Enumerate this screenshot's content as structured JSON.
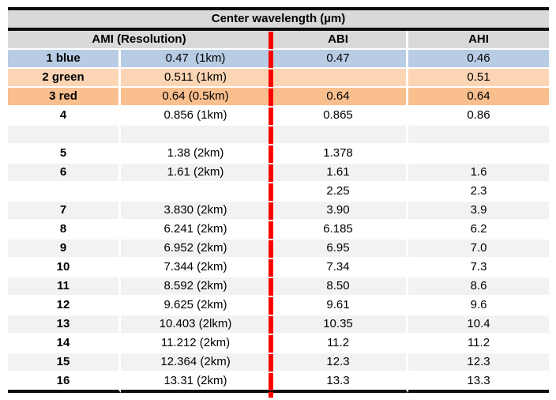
{
  "chart_data": {
    "type": "table",
    "title": "Center wavelength (µm)",
    "header": {
      "ami": "AMI (Resolution)",
      "abi": "ABI",
      "ahi": "AHI"
    },
    "column_keys": [
      "band",
      "ami",
      "abi",
      "ahi"
    ],
    "rows": [
      {
        "band": "1 blue",
        "ami": "0.47  (1km)",
        "abi": "0.47",
        "ahi": "0.46",
        "bg": "blue"
      },
      {
        "band": "2 green",
        "ami": "0.511 (1km)",
        "abi": "",
        "ahi": "0.51",
        "bg": "peach"
      },
      {
        "band": "3 red",
        "ami": "0.64 (0.5km)",
        "abi": "0.64",
        "ahi": "0.64",
        "bg": "orange"
      },
      {
        "band": "4",
        "ami": "0.856 (1km)",
        "abi": "0.865",
        "ahi": "0.86",
        "bg": "white"
      },
      {
        "band": "",
        "ami": "",
        "abi": "",
        "ahi": "",
        "bg": "gray"
      },
      {
        "band": "5",
        "ami": "1.38 (2km)",
        "abi": "1.378",
        "ahi": "",
        "bg": "white"
      },
      {
        "band": "6",
        "ami": "1.61 (2km)",
        "abi": "1.61",
        "ahi": "1.6",
        "bg": "gray"
      },
      {
        "band": "",
        "ami": "",
        "abi": "2.25",
        "ahi": "2.3",
        "bg": "white"
      },
      {
        "band": "7",
        "ami": "3.830 (2km)",
        "abi": "3.90",
        "ahi": "3.9",
        "bg": "gray"
      },
      {
        "band": "8",
        "ami": "6.241 (2km)",
        "abi": "6.185",
        "ahi": "6.2",
        "bg": "white"
      },
      {
        "band": "9",
        "ami": "6.952 (2km)",
        "abi": "6.95",
        "ahi": "7.0",
        "bg": "gray"
      },
      {
        "band": "10",
        "ami": "7.344 (2km)",
        "abi": "7.34",
        "ahi": "7.3",
        "bg": "white"
      },
      {
        "band": "11",
        "ami": "8.592 (2km)",
        "abi": "8.50",
        "ahi": "8.6",
        "bg": "gray"
      },
      {
        "band": "12",
        "ami": "9.625 (2km)",
        "abi": "9.61",
        "ahi": "9.6",
        "bg": "white"
      },
      {
        "band": "13",
        "ami": "10.403 (2lkm)",
        "abi": "10.35",
        "ahi": "10.4",
        "bg": "gray"
      },
      {
        "band": "14",
        "ami": "11.212 (2km)",
        "abi": "11.2",
        "ahi": "11.2",
        "bg": "white"
      },
      {
        "band": "15",
        "ami": "12.364 (2km)",
        "abi": "12.3",
        "ahi": "12.3",
        "bg": "gray"
      },
      {
        "band": "16",
        "ami": "13.31 (2km)",
        "abi": "13.3",
        "ahi": "13.3",
        "bg": "white"
      }
    ]
  },
  "palette": {
    "header_bg": "#d9d9d9",
    "row_blue": "#b8cce4",
    "row_peach": "#fcd5b4",
    "row_orange": "#fabf8f",
    "row_gray": "#f2f2f2",
    "row_white": "#ffffff",
    "red_line": "#fe0000",
    "border_black": "#0d0d0d",
    "grid_white": "#ffffff",
    "text": "#000000"
  }
}
